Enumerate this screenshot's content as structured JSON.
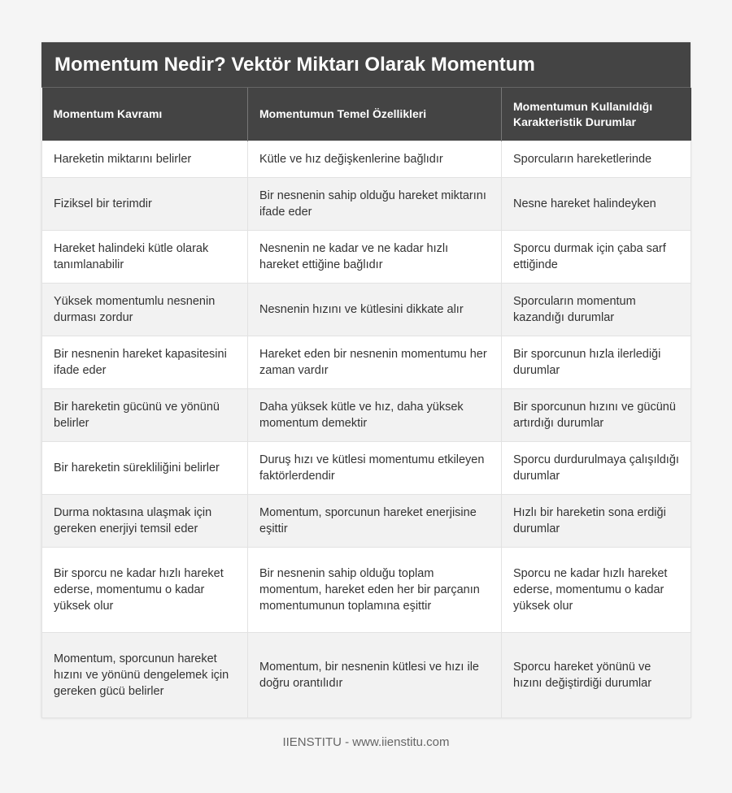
{
  "title": "Momentum Nedir? Vektör Miktarı Olarak Momentum",
  "headers": [
    "Momentum Kavramı",
    "Momentumun Temel Özellikleri",
    "Momentumun Kullanıldığı Karakteristik Durumlar"
  ],
  "rows": [
    [
      "Hareketin miktarını belirler",
      "Kütle ve hız değişkenlerine bağlıdır",
      "Sporcuların hareketlerinde"
    ],
    [
      "Fiziksel bir terimdir",
      "Bir nesnenin sahip olduğu hareket miktarını ifade eder",
      "Nesne hareket halindeyken"
    ],
    [
      "Hareket halindeki kütle olarak tanımlanabilir",
      "Nesnenin ne kadar ve ne kadar hızlı hareket ettiğine bağlıdır",
      "Sporcu durmak için çaba sarf ettiğinde"
    ],
    [
      "Yüksek momentumlu nesnenin durması zordur",
      "Nesnenin hızını ve kütlesini dikkate alır",
      "Sporcuların momentum kazandığı durumlar"
    ],
    [
      "Bir nesnenin hareket kapasitesini ifade eder",
      "Hareket eden bir nesnenin momentumu her zaman vardır",
      "Bir sporcunun hızla ilerlediği durumlar"
    ],
    [
      "Bir hareketin gücünü ve yönünü belirler",
      "Daha yüksek kütle ve hız, daha yüksek momentum demektir",
      "Bir sporcunun hızını ve gücünü artırdığı durumlar"
    ],
    [
      "Bir hareketin sürekliliğini belirler",
      "Duruş hızı ve kütlesi momentumu etkileyen faktörlerdendir",
      "Sporcu durdurulmaya çalışıldığı durumlar"
    ],
    [
      "Durma noktasına ulaşmak için gereken enerjiyi temsil eder",
      "Momentum, sporcunun hareket enerjisine eşittir",
      "Hızlı bir hareketin sona erdiği durumlar"
    ],
    [
      "Bir sporcu ne kadar hızlı hareket ederse, momentumu o kadar yüksek olur",
      "Bir nesnenin sahip olduğu toplam momentum, hareket eden her bir parçanın momentumunun toplamına eşittir",
      "Sporcu ne kadar hızlı hareket ederse, momentumu o kadar yüksek olur"
    ],
    [
      "Momentum, sporcunun hareket hızını ve yönünü dengelemek için gereken gücü belirler",
      "Momentum, bir nesnenin kütlesi ve hızı ile doğru orantılıdır",
      "Sporcu hareket yönünü ve hızını değiştirdiği durumlar"
    ]
  ],
  "footer": "IIENSTITU - www.iienstitu.com"
}
